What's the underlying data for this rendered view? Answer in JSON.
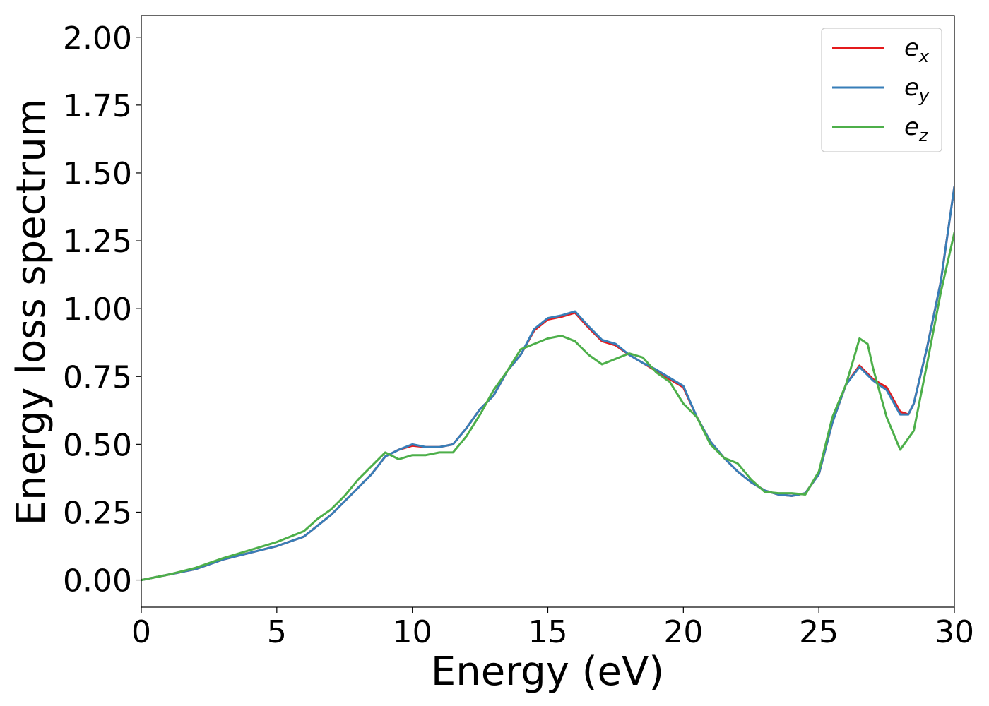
{
  "chart_data": {
    "type": "line",
    "title": "",
    "xlabel": "Energy (eV)",
    "ylabel": "Energy loss spectrum",
    "xlim": [
      0,
      30
    ],
    "ylim": [
      -0.1,
      2.08
    ],
    "xticks": [
      0,
      5,
      10,
      15,
      20,
      25,
      30
    ],
    "xtick_labels": [
      "0",
      "5",
      "10",
      "15",
      "20",
      "25",
      "30"
    ],
    "yticks": [
      0,
      0.25,
      0.5,
      0.75,
      1.0,
      1.25,
      1.5,
      1.75,
      2.0
    ],
    "ytick_labels": [
      "0.00",
      "0.25",
      "0.50",
      "0.75",
      "1.00",
      "1.25",
      "1.50",
      "1.75",
      "2.00"
    ],
    "grid": false,
    "legend_position": "top-right",
    "series": [
      {
        "name": "e_x",
        "label_base": "e",
        "label_sub": "x",
        "color": "#e41a1c",
        "x": [
          0,
          1,
          2,
          3,
          4,
          5,
          6,
          7,
          7.5,
          8,
          8.5,
          9,
          9.5,
          10,
          10.5,
          11,
          11.5,
          12,
          12.5,
          13,
          13.5,
          14,
          14.5,
          15,
          15.5,
          16,
          16.5,
          17,
          17.5,
          18,
          18.5,
          19,
          19.5,
          20,
          20.5,
          21,
          21.5,
          22,
          22.5,
          23,
          23.5,
          24,
          24.5,
          25,
          25.5,
          26,
          26.5,
          27,
          27.5,
          28,
          28.3,
          28.5,
          29,
          29.5,
          30
        ],
        "y": [
          0.0,
          0.02,
          0.04,
          0.075,
          0.1,
          0.125,
          0.16,
          0.24,
          0.29,
          0.34,
          0.39,
          0.455,
          0.48,
          0.495,
          0.49,
          0.49,
          0.5,
          0.56,
          0.63,
          0.68,
          0.77,
          0.83,
          0.92,
          0.96,
          0.97,
          0.985,
          0.93,
          0.88,
          0.865,
          0.83,
          0.8,
          0.77,
          0.74,
          0.71,
          0.6,
          0.51,
          0.45,
          0.4,
          0.36,
          0.33,
          0.315,
          0.31,
          0.32,
          0.39,
          0.58,
          0.72,
          0.79,
          0.74,
          0.71,
          0.62,
          0.61,
          0.65,
          0.86,
          1.1,
          1.45
        ]
      },
      {
        "name": "e_y",
        "label_base": "e",
        "label_sub": "y",
        "color": "#377eb8",
        "x": [
          0,
          1,
          2,
          3,
          4,
          5,
          6,
          7,
          7.5,
          8,
          8.5,
          9,
          9.5,
          10,
          10.5,
          11,
          11.5,
          12,
          12.5,
          13,
          13.5,
          14,
          14.5,
          15,
          15.5,
          16,
          16.5,
          17,
          17.5,
          18,
          18.5,
          19,
          19.5,
          20,
          20.5,
          21,
          21.5,
          22,
          22.5,
          23,
          23.5,
          24,
          24.5,
          25,
          25.5,
          26,
          26.5,
          27,
          27.5,
          28,
          28.3,
          28.5,
          29,
          29.5,
          30
        ],
        "y": [
          0.0,
          0.02,
          0.04,
          0.075,
          0.1,
          0.125,
          0.16,
          0.24,
          0.29,
          0.34,
          0.39,
          0.455,
          0.48,
          0.5,
          0.49,
          0.49,
          0.5,
          0.56,
          0.63,
          0.68,
          0.77,
          0.83,
          0.925,
          0.965,
          0.975,
          0.99,
          0.935,
          0.885,
          0.87,
          0.83,
          0.8,
          0.775,
          0.745,
          0.715,
          0.6,
          0.51,
          0.45,
          0.4,
          0.36,
          0.33,
          0.315,
          0.31,
          0.32,
          0.39,
          0.58,
          0.72,
          0.785,
          0.735,
          0.7,
          0.61,
          0.61,
          0.65,
          0.86,
          1.1,
          1.45
        ]
      },
      {
        "name": "e_z",
        "label_base": "e",
        "label_sub": "z",
        "color": "#4daf4a",
        "x": [
          0,
          1,
          2,
          3,
          4,
          5,
          6,
          6.5,
          7,
          7.5,
          8,
          8.5,
          9,
          9.5,
          10,
          10.5,
          11,
          11.5,
          12,
          12.5,
          13,
          13.5,
          14,
          14.5,
          15,
          15.5,
          16,
          16.5,
          17,
          17.5,
          18,
          18.5,
          19,
          19.5,
          20,
          20.5,
          21,
          21.5,
          22,
          22.5,
          23,
          23.5,
          24,
          24.5,
          25,
          25.5,
          26,
          26.3,
          26.5,
          26.8,
          27,
          27.5,
          28,
          28.5,
          29,
          29.5,
          30
        ],
        "y": [
          0.0,
          0.02,
          0.045,
          0.08,
          0.11,
          0.14,
          0.18,
          0.225,
          0.26,
          0.31,
          0.37,
          0.42,
          0.47,
          0.445,
          0.46,
          0.46,
          0.47,
          0.47,
          0.53,
          0.61,
          0.7,
          0.77,
          0.85,
          0.87,
          0.89,
          0.9,
          0.88,
          0.83,
          0.795,
          0.815,
          0.835,
          0.82,
          0.765,
          0.73,
          0.65,
          0.6,
          0.5,
          0.45,
          0.43,
          0.37,
          0.325,
          0.32,
          0.32,
          0.315,
          0.4,
          0.6,
          0.72,
          0.82,
          0.89,
          0.87,
          0.78,
          0.6,
          0.48,
          0.55,
          0.8,
          1.06,
          1.28
        ]
      }
    ]
  }
}
